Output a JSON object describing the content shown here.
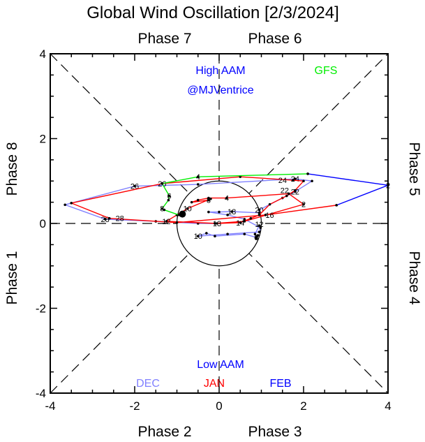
{
  "chart_data": {
    "type": "line",
    "title": "Global Wind Oscillation [2/3/2024]",
    "xlim": [
      -4,
      4
    ],
    "ylim": [
      -4,
      4
    ],
    "xticks": [
      -4,
      -2,
      0,
      2,
      4
    ],
    "yticks": [
      -4,
      -2,
      0,
      2,
      4
    ],
    "grid": false,
    "phase_labels": {
      "top_left": "Phase 7",
      "top_right": "Phase 6",
      "bottom_left": "Phase 2",
      "bottom_right": "Phase 3",
      "left_top": "Phase 8",
      "left_bottom": "Phase 1",
      "right_top": "Phase 5",
      "right_bottom": "Phase 4"
    },
    "annotations": {
      "high": "High AAM",
      "credit": "@MJVentrice",
      "low": "Low AAM",
      "forecast": "GFS"
    },
    "legend": [
      {
        "name": "DEC",
        "color": "#8080ff"
      },
      {
        "name": "JAN",
        "color": "#ff0000"
      },
      {
        "name": "FEB",
        "color": "#0000ff"
      }
    ],
    "series": [
      {
        "name": "DEC",
        "color": "#8080ff",
        "points": [
          [
            0.95,
            -0.05,
            ""
          ],
          [
            0.85,
            -0.25,
            ""
          ],
          [
            0.88,
            -0.35,
            ""
          ],
          [
            0.9,
            -0.3,
            ""
          ],
          [
            0.92,
            -0.28,
            ""
          ],
          [
            0.88,
            -0.33,
            "6"
          ],
          [
            0.6,
            -0.25,
            ""
          ],
          [
            -0.1,
            -0.3,
            ""
          ],
          [
            -0.3,
            -0.23,
            ""
          ],
          [
            -0.5,
            -0.3,
            "10"
          ],
          [
            0.2,
            -0.25,
            ""
          ],
          [
            0.95,
            -0.2,
            "12"
          ],
          [
            0.98,
            -0.1,
            ""
          ],
          [
            0.6,
            0.1,
            ""
          ],
          [
            0.2,
            0.2,
            ""
          ],
          [
            -0.25,
            0.27,
            ""
          ],
          [
            0.0,
            0.27,
            ""
          ],
          [
            0.3,
            0.28,
            "18"
          ],
          [
            0.95,
            0.25,
            ""
          ],
          [
            0.95,
            0.32,
            "20"
          ],
          [
            1.5,
            0.6,
            ""
          ],
          [
            1.8,
            0.75,
            "22"
          ],
          [
            2.2,
            1.0,
            ""
          ],
          [
            1.8,
            1.05,
            "24"
          ],
          [
            -0.5,
            0.92,
            ""
          ],
          [
            -2.0,
            0.88,
            "26"
          ],
          [
            -3.65,
            0.44,
            ""
          ],
          [
            -2.7,
            0.1,
            "28"
          ],
          [
            -1.5,
            0.05,
            ""
          ],
          [
            -0.5,
            0.0,
            ""
          ],
          [
            -0.1,
            0.0,
            ""
          ]
        ]
      },
      {
        "name": "JAN",
        "color": "#ff0000",
        "points": [
          [
            -0.1,
            0.0,
            ""
          ],
          [
            0.6,
            0.05,
            ""
          ],
          [
            2.0,
            0.45,
            "2"
          ],
          [
            1.65,
            0.7,
            ""
          ],
          [
            0.18,
            0.6,
            "4"
          ],
          [
            -0.25,
            0.6,
            ""
          ],
          [
            -0.5,
            0.55,
            ""
          ],
          [
            -0.65,
            0.5,
            ""
          ],
          [
            -0.25,
            0.55,
            "8"
          ],
          [
            -0.2,
            0.58,
            ""
          ],
          [
            -0.75,
            0.35,
            "10"
          ],
          [
            -1.0,
            0.2,
            ""
          ],
          [
            -1.25,
            0.05,
            "12"
          ],
          [
            -0.05,
            0.0,
            "13"
          ],
          [
            0.5,
            0.02,
            "14"
          ],
          [
            0.75,
            0.12,
            ""
          ],
          [
            0.95,
            0.2,
            "16"
          ],
          [
            1.2,
            0.45,
            ""
          ],
          [
            1.6,
            0.65,
            ""
          ],
          [
            1.8,
            0.78,
            "22"
          ],
          [
            2.0,
            1.0,
            ""
          ],
          [
            1.75,
            1.02,
            "24"
          ],
          [
            0.5,
            1.1,
            ""
          ],
          [
            -1.35,
            0.94,
            "26"
          ],
          [
            -3.5,
            0.48,
            ""
          ],
          [
            -2.6,
            0.12,
            "28"
          ],
          [
            -1.0,
            0.02,
            ""
          ],
          [
            1.1,
            0.2,
            ""
          ],
          [
            2.78,
            0.43,
            ""
          ]
        ]
      },
      {
        "name": "FEB",
        "color": "#0000ff",
        "points": [
          [
            2.78,
            0.43,
            ""
          ],
          [
            4.0,
            0.9,
            "2"
          ],
          [
            2.1,
            1.17,
            ""
          ]
        ]
      },
      {
        "name": "GFS",
        "color": "#00ee00",
        "points": [
          [
            2.1,
            1.17,
            ""
          ],
          [
            -0.5,
            1.1,
            "4"
          ],
          [
            -1.35,
            0.94,
            ""
          ],
          [
            -1.18,
            0.65,
            "6"
          ],
          [
            -1.2,
            0.55,
            ""
          ],
          [
            -1.35,
            0.35,
            "8"
          ],
          [
            -1.3,
            0.32,
            ""
          ],
          [
            -0.95,
            0.2,
            ""
          ],
          [
            -0.87,
            0.22,
            ""
          ]
        ]
      }
    ]
  }
}
